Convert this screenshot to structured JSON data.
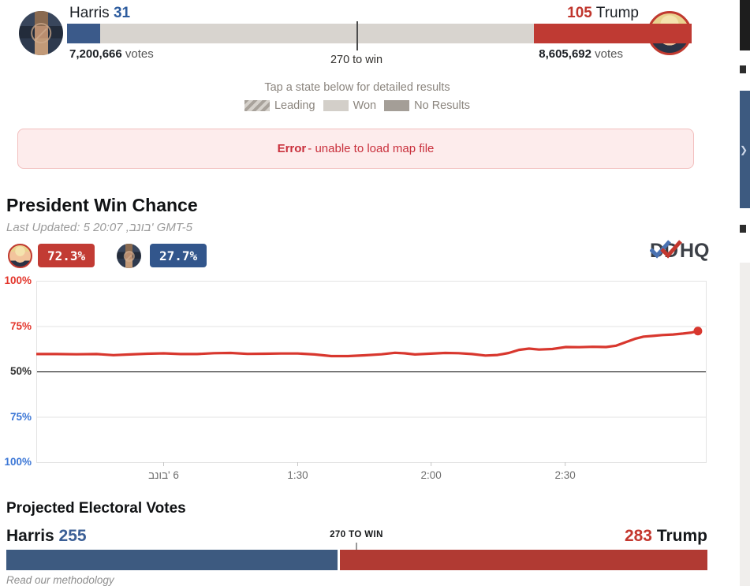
{
  "top_bar": {
    "harris_name": "Harris",
    "harris_ev": "31",
    "harris_votes": "7,200,666",
    "harris_votes_suffix": " votes",
    "trump_ev": "105",
    "trump_name": "Trump",
    "trump_votes": "8,605,692",
    "trump_votes_suffix": " votes",
    "marker_label": "270 to win"
  },
  "map_section": {
    "tap_hint": "Tap a state below for detailed results",
    "legend": [
      {
        "label": "Leading",
        "style": "striped"
      },
      {
        "label": "Won",
        "style": "won"
      },
      {
        "label": "No Results",
        "style": "none"
      }
    ],
    "error_bold": "Error",
    "error_text": "- unable to load map file"
  },
  "win_chance": {
    "title": "President Win Chance",
    "last_updated": "‭Last Updated: 5 20:07 ,בנוב' GMT-5‬",
    "trump_pct": "72.3%",
    "harris_pct": "27.7%",
    "logo_text": "HQ"
  },
  "chart_data": {
    "type": "line",
    "title": "President Win Chance",
    "description": "Mirrored win-probability axis: upper half Trump (red), lower half Harris (blue). Red line = Trump win chance, ends at 72.3%.",
    "y_ticks": [
      {
        "label": "100%",
        "color": "#e3362c"
      },
      {
        "label": "75%",
        "color": "#e3362c"
      },
      {
        "label": "50%",
        "color": "#333333"
      },
      {
        "label": "75%",
        "color": "#3c77d6"
      },
      {
        "label": "100%",
        "color": "#3c77d6"
      }
    ],
    "x_ticks": [
      {
        "label": "‭בנוב' 6‬",
        "pos": 0.19
      },
      {
        "label": "1:30",
        "pos": 0.39
      },
      {
        "label": "2:00",
        "pos": 0.589
      },
      {
        "label": "2:30",
        "pos": 0.789
      }
    ],
    "grid": true,
    "legend_position": "none",
    "end_value": 72.3,
    "series": [
      {
        "name": "Trump win chance (%)",
        "color": "#d8372e",
        "points": [
          [
            0.0,
            59.6
          ],
          [
            0.03,
            59.6
          ],
          [
            0.06,
            59.5
          ],
          [
            0.09,
            59.6
          ],
          [
            0.115,
            59.0
          ],
          [
            0.14,
            59.4
          ],
          [
            0.165,
            59.8
          ],
          [
            0.19,
            60.0
          ],
          [
            0.215,
            59.6
          ],
          [
            0.24,
            59.6
          ],
          [
            0.265,
            60.1
          ],
          [
            0.29,
            60.2
          ],
          [
            0.315,
            59.7
          ],
          [
            0.34,
            59.8
          ],
          [
            0.365,
            59.9
          ],
          [
            0.39,
            59.9
          ],
          [
            0.415,
            59.4
          ],
          [
            0.44,
            58.5
          ],
          [
            0.465,
            58.5
          ],
          [
            0.49,
            58.9
          ],
          [
            0.515,
            59.5
          ],
          [
            0.535,
            60.3
          ],
          [
            0.55,
            60.0
          ],
          [
            0.565,
            59.4
          ],
          [
            0.585,
            59.8
          ],
          [
            0.61,
            60.2
          ],
          [
            0.63,
            60.1
          ],
          [
            0.65,
            59.6
          ],
          [
            0.67,
            58.8
          ],
          [
            0.688,
            59.1
          ],
          [
            0.705,
            60.2
          ],
          [
            0.72,
            61.9
          ],
          [
            0.735,
            62.6
          ],
          [
            0.75,
            62.1
          ],
          [
            0.77,
            62.4
          ],
          [
            0.79,
            63.5
          ],
          [
            0.81,
            63.4
          ],
          [
            0.83,
            63.6
          ],
          [
            0.85,
            63.5
          ],
          [
            0.865,
            64.2
          ],
          [
            0.878,
            66.0
          ],
          [
            0.893,
            68.0
          ],
          [
            0.906,
            69.2
          ],
          [
            0.92,
            69.6
          ],
          [
            0.934,
            70.1
          ],
          [
            0.95,
            70.4
          ],
          [
            0.965,
            70.9
          ],
          [
            0.978,
            71.5
          ],
          [
            0.987,
            72.3
          ]
        ]
      }
    ]
  },
  "projected": {
    "title": "Projected Electoral Votes",
    "harris_name": "Harris",
    "harris_ev": "255",
    "trump_ev": "283",
    "trump_name": "Trump",
    "marker_label": "270 TO WIN",
    "methodology": "Read our methodology"
  },
  "colors": {
    "harris_bar": "#3d5a80",
    "harris_text": "#2d5c9e",
    "trump_bar": "#bf3a33",
    "trump_text": "#c0352c",
    "no_results_gray": "#a49e97",
    "won_gray": "#d3cfc9",
    "line_red": "#d8372e",
    "error_bg": "#fdecec",
    "error_text": "#c9303c"
  }
}
